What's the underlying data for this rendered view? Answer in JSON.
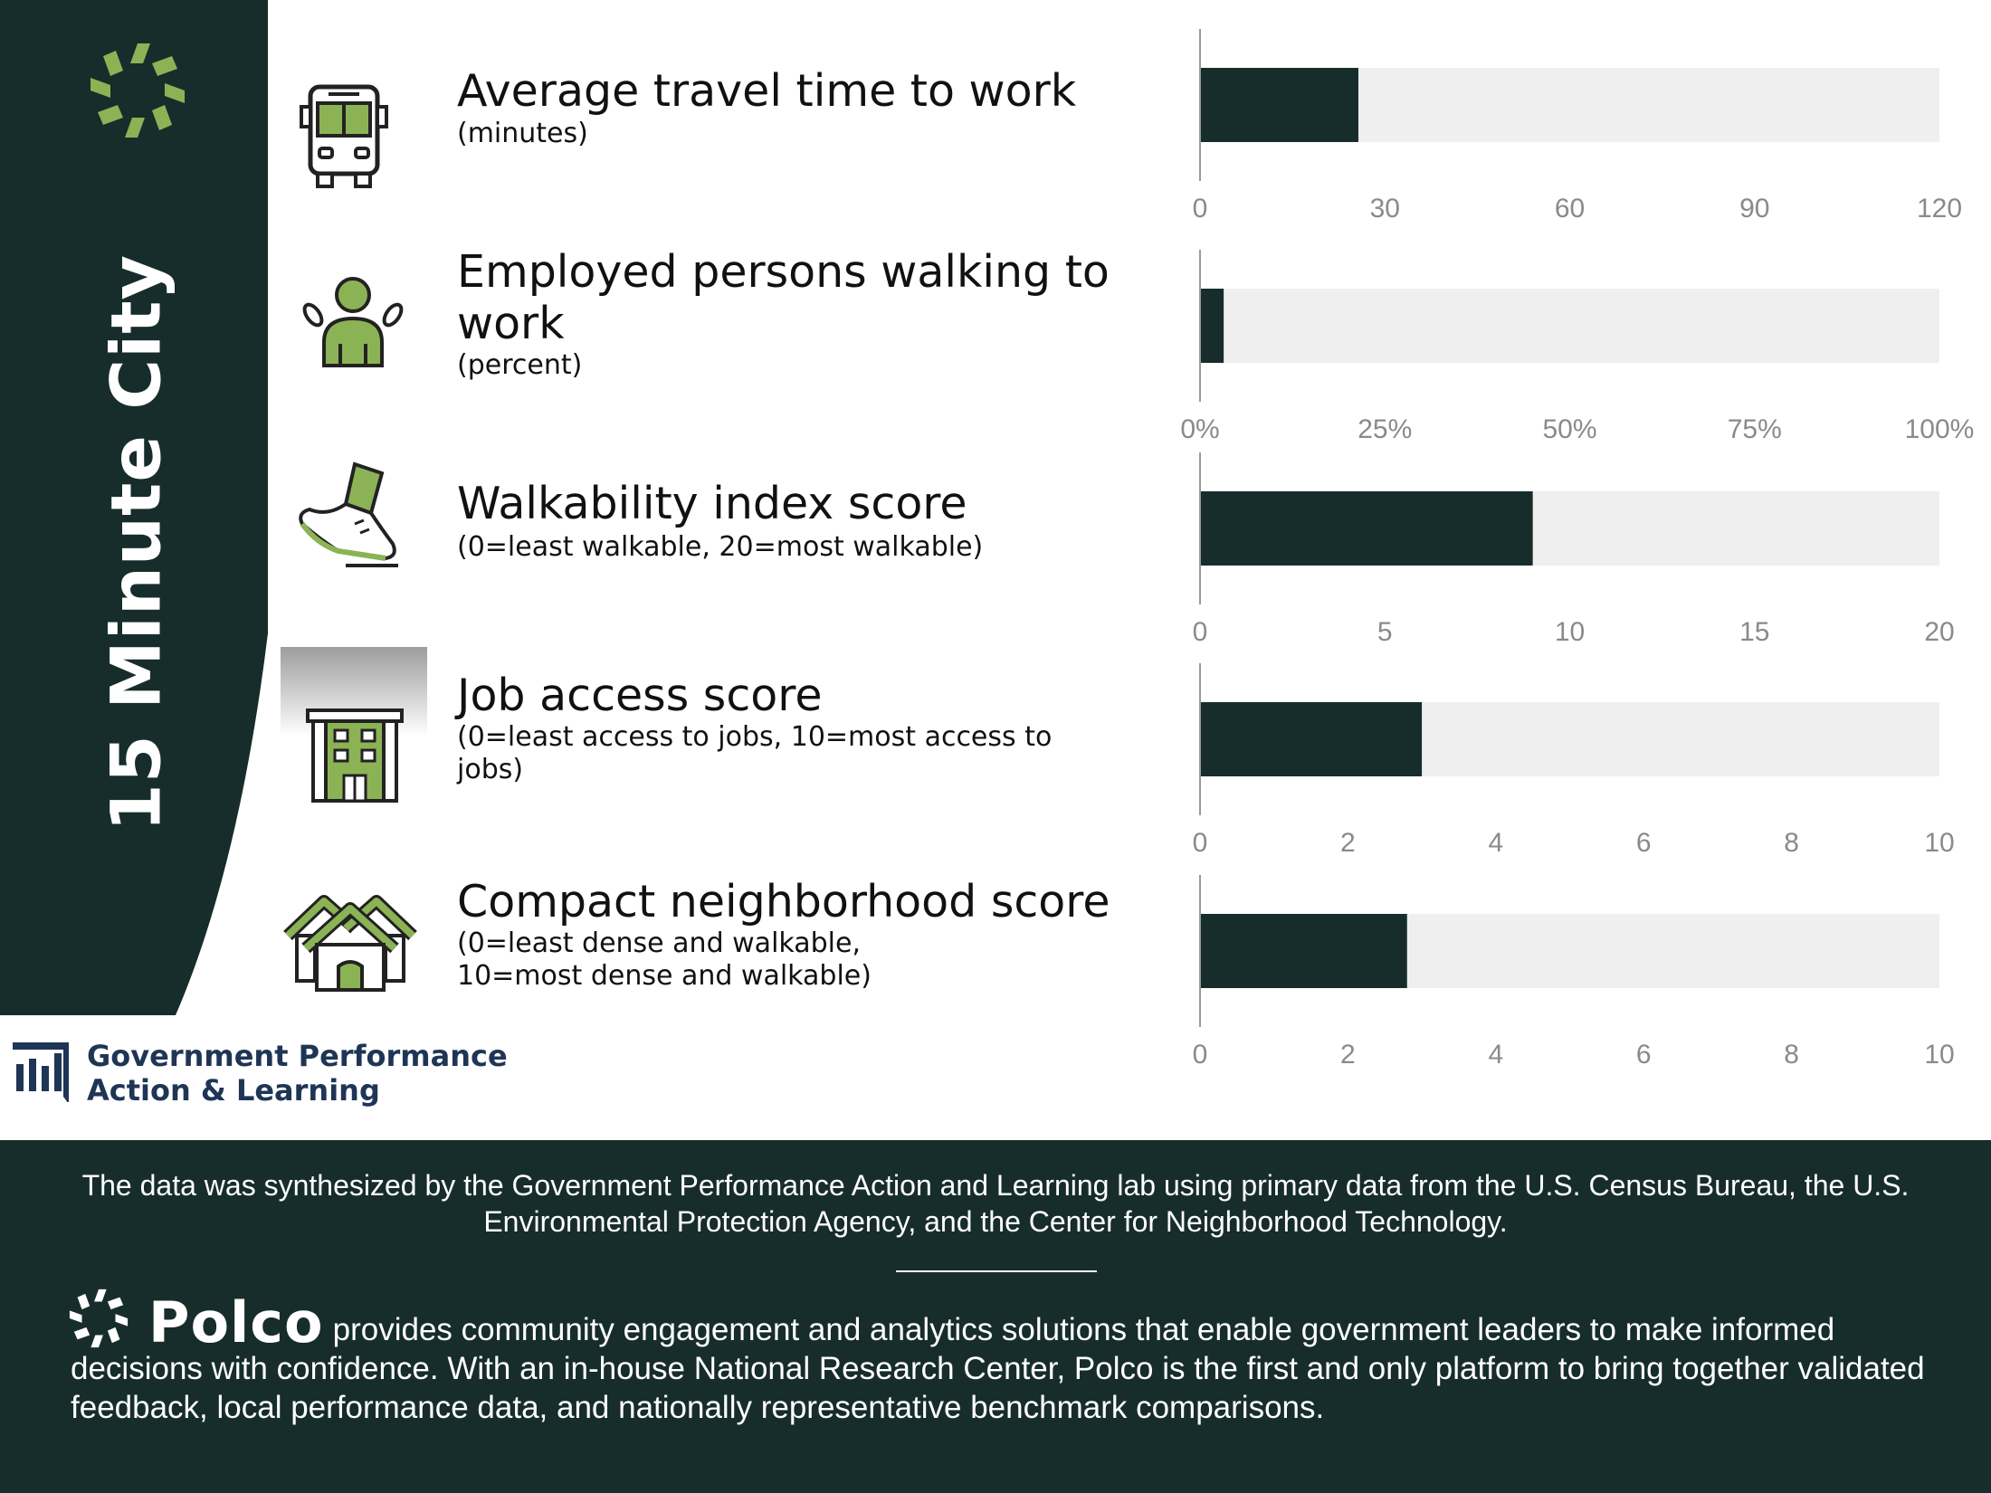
{
  "sidebar": {
    "title": "15 Minute City"
  },
  "colors": {
    "dark": "#172d2b",
    "bar": "#172d2b",
    "track": "#efefef",
    "accent": "#8bb356",
    "axis": "#999999"
  },
  "metrics": [
    {
      "title": "Average travel time to work",
      "subtitle": "(minutes)",
      "icon": "bus-icon"
    },
    {
      "title": "Employed persons walking to work",
      "subtitle": "(percent)",
      "icon": "walking-person-icon"
    },
    {
      "title": "Walkability index score",
      "subtitle": "(0=least walkable, 20=most walkable)",
      "icon": "shoe-icon"
    },
    {
      "title": "Job access score",
      "subtitle": "(0=least access to jobs, 10=most access to jobs)",
      "icon": "office-building-icon"
    },
    {
      "title": "Compact neighborhood score",
      "subtitle_lines": [
        "(0=least dense and walkable,",
        "10=most dense and walkable)"
      ],
      "icon": "houses-icon"
    }
  ],
  "chart_data": [
    {
      "type": "bar",
      "categories": [
        "Average travel time to work"
      ],
      "values": [
        25.7
      ],
      "xlim": [
        0,
        120
      ],
      "ticks": [
        "0",
        "30",
        "60",
        "90",
        "120"
      ]
    },
    {
      "type": "bar",
      "categories": [
        "Employed persons walking to work"
      ],
      "values": [
        3.2
      ],
      "xlim": [
        0,
        100
      ],
      "ticks": [
        "0%",
        "25%",
        "50%",
        "75%",
        "100%"
      ]
    },
    {
      "type": "bar",
      "categories": [
        "Walkability index score"
      ],
      "values": [
        9.0
      ],
      "xlim": [
        0,
        20
      ],
      "ticks": [
        "0",
        "5",
        "10",
        "15",
        "20"
      ]
    },
    {
      "type": "bar",
      "categories": [
        "Job access score"
      ],
      "values": [
        3.0
      ],
      "xlim": [
        0,
        10
      ],
      "ticks": [
        "0",
        "2",
        "4",
        "6",
        "8",
        "10"
      ]
    },
    {
      "type": "bar",
      "categories": [
        "Compact neighborhood score"
      ],
      "values": [
        2.8
      ],
      "xlim": [
        0,
        10
      ],
      "ticks": [
        "0",
        "2",
        "4",
        "6",
        "8",
        "10"
      ]
    }
  ],
  "gpal_logo": {
    "line1": "Government Performance",
    "line2": "Action & Learning"
  },
  "footer": {
    "note": "The data was synthesized by the Government Performance Action and Learning lab using primary data from the U.S. Census Bureau, the U.S. Environmental Protection Agency, and the Center for Neighborhood Technology.",
    "brand": "Polco",
    "about": "provides community engagement and analytics solutions that enable government leaders to make informed decisions with confidence. With an in-house National Research Center, Polco is the first and only platform to bring together validated feedback, local performance data, and nationally representative benchmark comparisons."
  }
}
